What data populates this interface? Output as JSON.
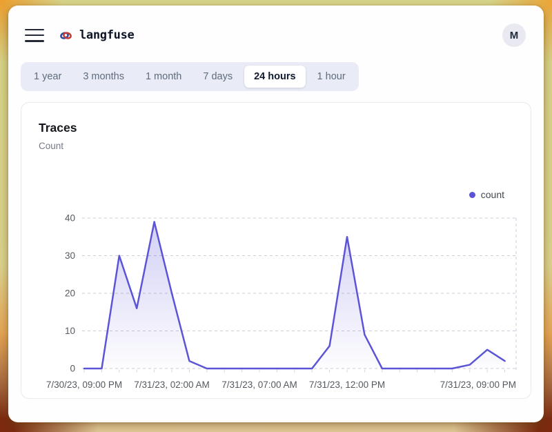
{
  "header": {
    "brand": "langfuse",
    "avatar_initial": "M"
  },
  "tabs": {
    "items": [
      {
        "label": "1 year",
        "active": false
      },
      {
        "label": "3 months",
        "active": false
      },
      {
        "label": "1 month",
        "active": false
      },
      {
        "label": "7 days",
        "active": false
      },
      {
        "label": "24 hours",
        "active": true
      },
      {
        "label": "1 hour",
        "active": false
      }
    ]
  },
  "card": {
    "title": "Traces",
    "subtitle": "Count"
  },
  "chart_data": {
    "type": "area",
    "title": "Traces",
    "ylabel": "Count",
    "legend": [
      {
        "name": "count",
        "color": "#5b54d6"
      }
    ],
    "legend_position": "top-right",
    "x": [
      "7/30/23 21:00",
      "7/30/23 22:00",
      "7/30/23 23:00",
      "7/31/23 00:00",
      "7/31/23 01:00",
      "7/31/23 02:00",
      "7/31/23 03:00",
      "7/31/23 04:00",
      "7/31/23 05:00",
      "7/31/23 06:00",
      "7/31/23 07:00",
      "7/31/23 08:00",
      "7/31/23 09:00",
      "7/31/23 10:00",
      "7/31/23 11:00",
      "7/31/23 12:00",
      "7/31/23 13:00",
      "7/31/23 14:00",
      "7/31/23 15:00",
      "7/31/23 16:00",
      "7/31/23 17:00",
      "7/31/23 18:00",
      "7/31/23 19:00",
      "7/31/23 20:00",
      "7/31/23 21:00"
    ],
    "series": [
      {
        "name": "count",
        "values": [
          0,
          0,
          30,
          16,
          39,
          20,
          2,
          0,
          0,
          0,
          0,
          0,
          0,
          0,
          6,
          35,
          9,
          0,
          0,
          0,
          0,
          0,
          1,
          5,
          2
        ]
      }
    ],
    "x_ticks": [
      {
        "index": 0,
        "label": "7/30/23, 09:00 PM"
      },
      {
        "index": 5,
        "label": "7/31/23, 02:00 AM"
      },
      {
        "index": 10,
        "label": "7/31/23, 07:00 AM"
      },
      {
        "index": 15,
        "label": "7/31/23, 12:00 PM"
      },
      {
        "index": 24,
        "label": "7/31/23, 09:00 PM"
      }
    ],
    "y_ticks": [
      0,
      10,
      20,
      30,
      40
    ],
    "ylim": [
      0,
      40
    ],
    "grid": "horizontal-dashed",
    "line_color": "#5b54d6",
    "area_fill": "vertical gradient #5b54d6 to transparent",
    "axis_text_color": "#55595f",
    "grid_color": "#c6cbd4"
  },
  "colors": {
    "accent": "#5b54d6",
    "tabbar_bg": "#e9ecf6",
    "active_tab_bg": "#ffffff",
    "card_border": "#e7e9ef"
  }
}
